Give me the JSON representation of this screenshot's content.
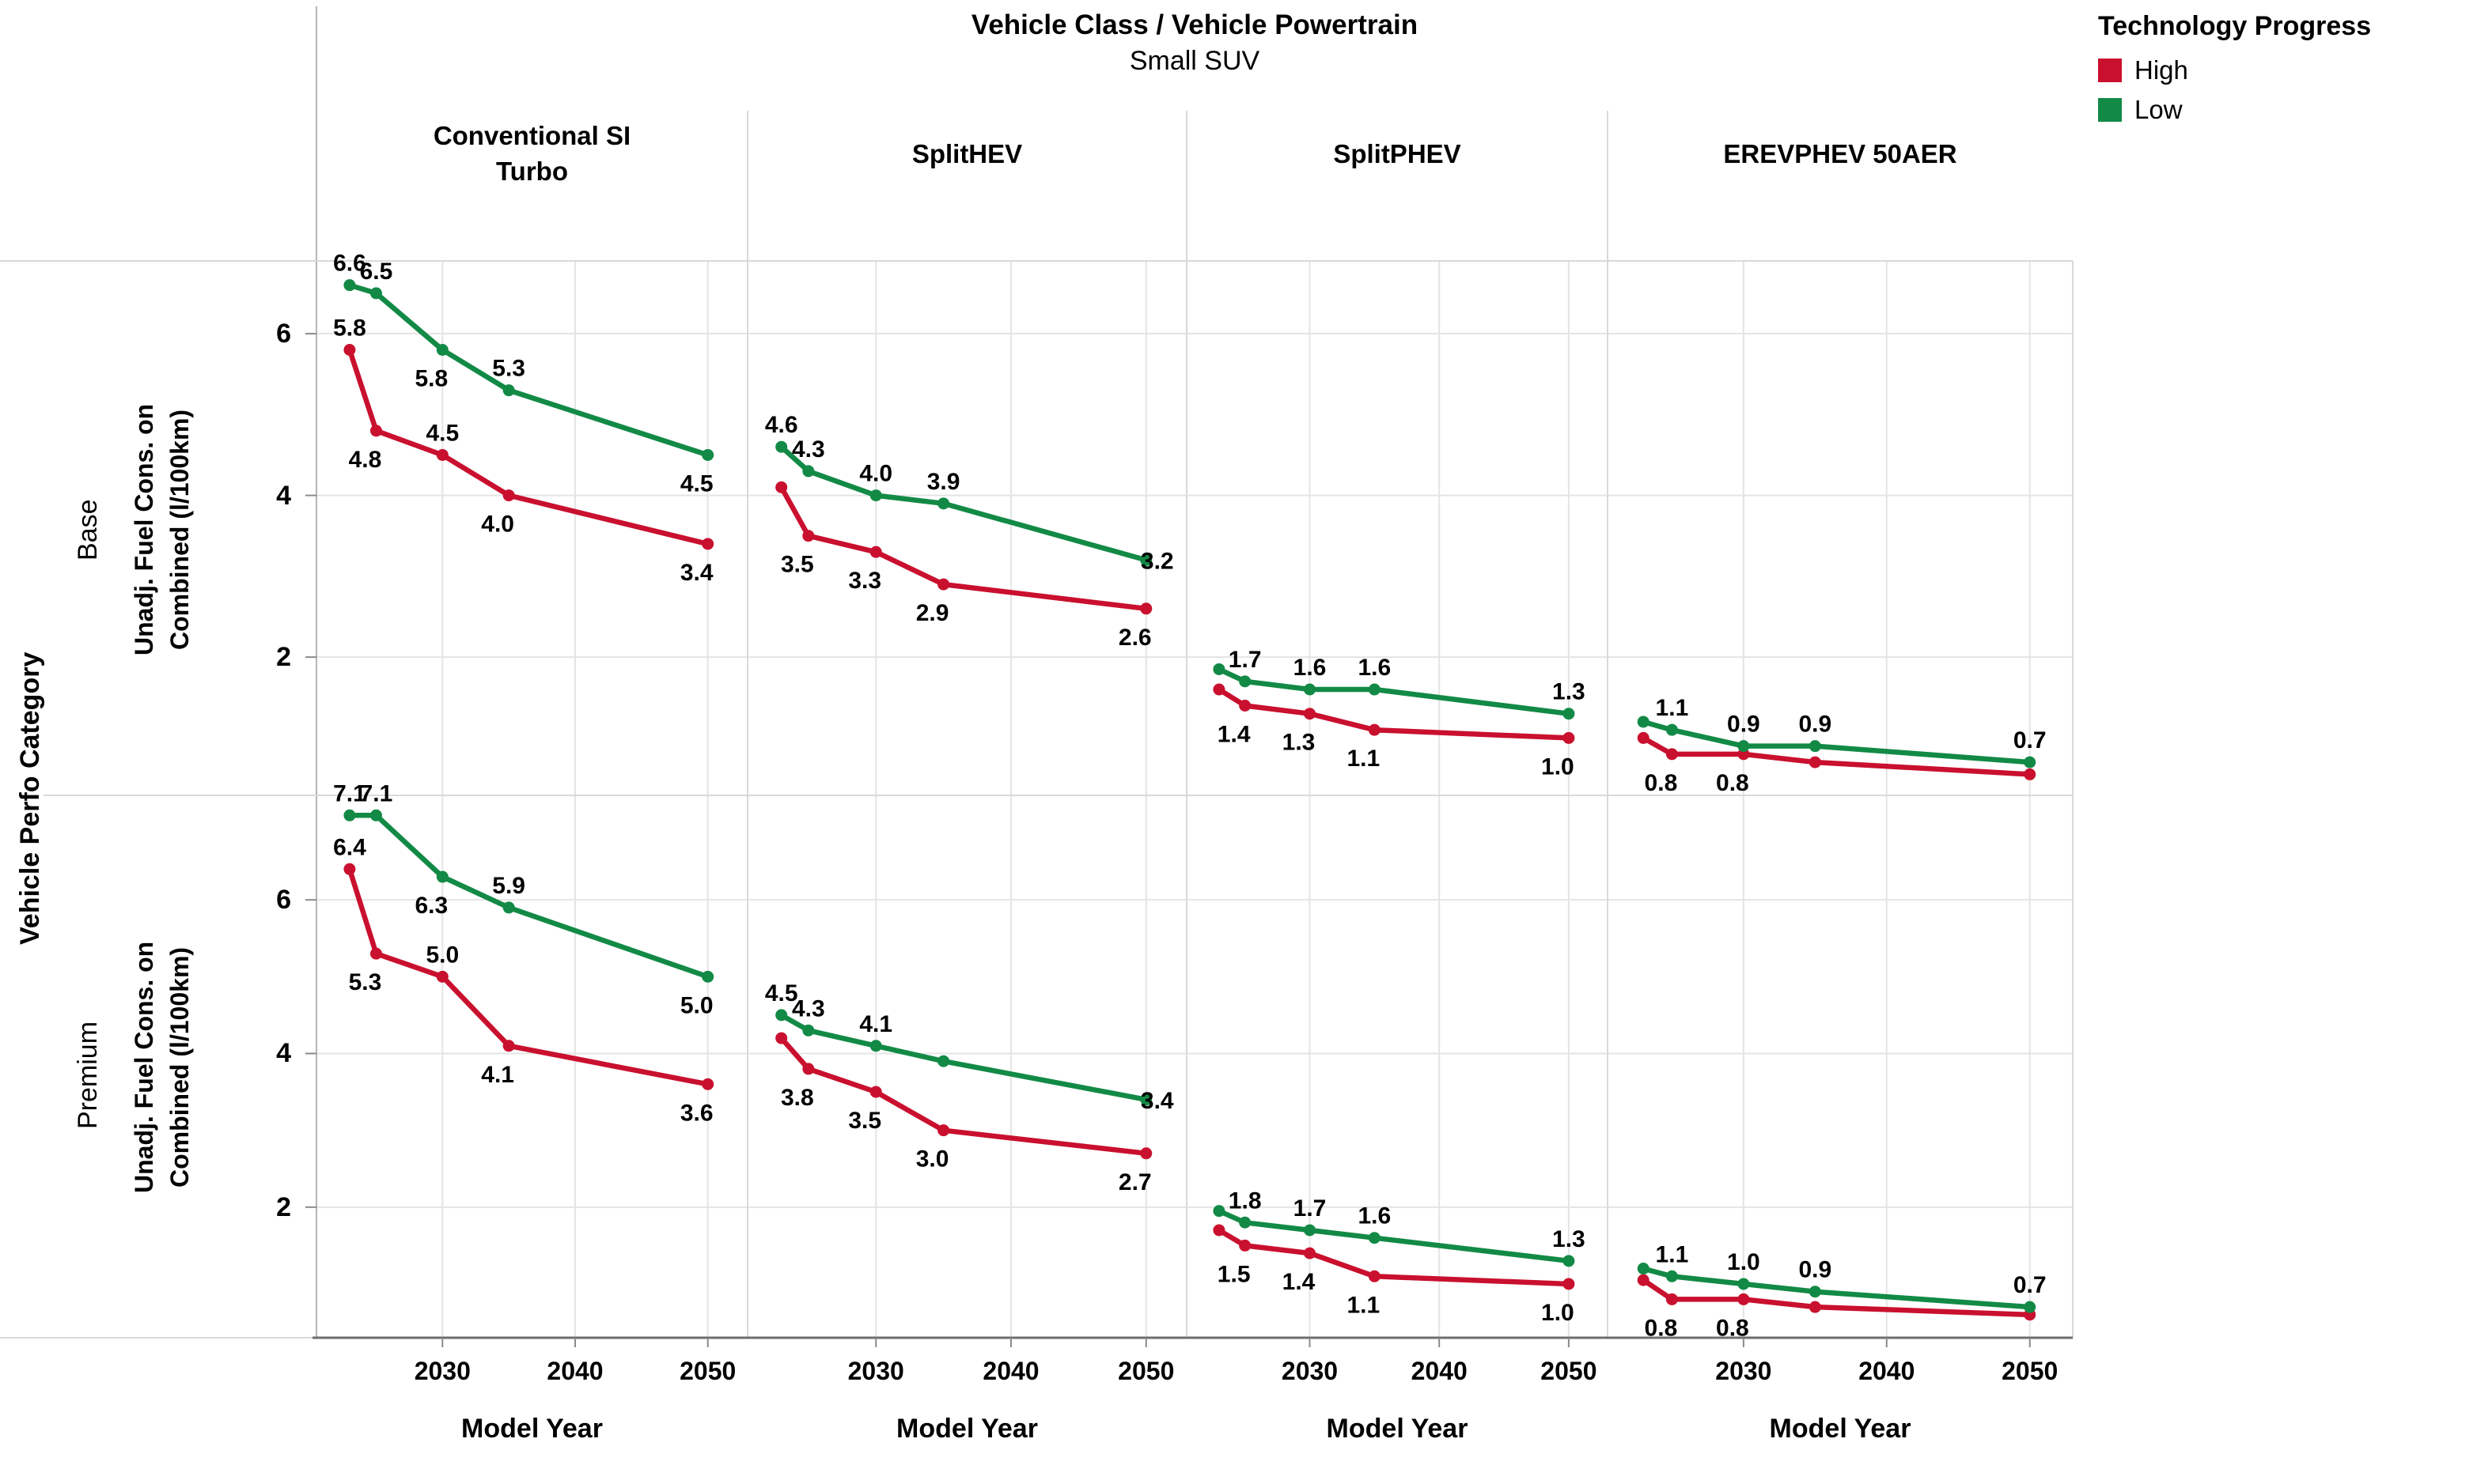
{
  "header": {
    "title": "Vehicle Class / Vehicle Powertrain",
    "subtitle": "Small SUV"
  },
  "legend": {
    "title": "Technology Progress",
    "items": [
      {
        "label": "High",
        "color": "#c9102e"
      },
      {
        "label": "Low",
        "color": "#128a46"
      }
    ]
  },
  "row_category_label": "Vehicle Perfo Category",
  "colors": {
    "high": "#c9102e",
    "low": "#128a46",
    "grid": "#e4e4e4",
    "separator": "#d9d9d9",
    "axis_line": "#b5b5b5",
    "bottom_axis": "#6e6e6e",
    "tick_mark": "#8a8a8a",
    "text": "#000000"
  },
  "chart_data": {
    "type": "line",
    "x": [
      2023,
      2025,
      2030,
      2035,
      2050
    ],
    "x_range": [
      2020.5,
      2053
    ],
    "x_ticks": [
      "2030",
      "2040",
      "2050"
    ],
    "x_label": "Model Year",
    "y_ticks": [
      2,
      4,
      6
    ],
    "y_label": "Unadj. Fuel Cons. on\nCombined (l/100km)",
    "y_range_base": [
      0.3,
      6.9
    ],
    "y_range_premium": [
      0.3,
      7.35
    ],
    "grid": true,
    "legend_position": "top-right",
    "columns": [
      "Conventional SI\nTurbo",
      "SplitHEV",
      "SplitPHEV",
      "EREVPHEV 50AER"
    ],
    "rows": [
      "Base",
      "Premium"
    ],
    "panels": [
      {
        "row": "Base",
        "column": "Conventional SI Turbo",
        "series": [
          {
            "name": "High",
            "color": "#c9102e",
            "values": [
              5.8,
              4.8,
              4.5,
              4.0,
              3.4
            ],
            "labels": [
              "5.8",
              "4.8",
              "4.5",
              "4.0",
              "3.4"
            ],
            "label_pos": [
              "a",
              "b",
              "a",
              "b",
              "b"
            ]
          },
          {
            "name": "Low",
            "color": "#128a46",
            "values": [
              6.6,
              6.5,
              5.8,
              5.3,
              4.5
            ],
            "labels": [
              "6.6",
              "6.5",
              "5.8",
              "5.3",
              "4.5"
            ],
            "label_pos": [
              "a",
              "a",
              "b",
              "a",
              "b"
            ]
          }
        ]
      },
      {
        "row": "Base",
        "column": "SplitHEV",
        "series": [
          {
            "name": "High",
            "color": "#c9102e",
            "values": [
              4.1,
              3.5,
              3.3,
              2.9,
              2.6
            ],
            "labels": [
              null,
              "3.5",
              "3.3",
              "2.9",
              "2.6"
            ],
            "label_pos": [
              null,
              "b",
              "b",
              "b",
              "b"
            ]
          },
          {
            "name": "Low",
            "color": "#128a46",
            "values": [
              4.6,
              4.3,
              4.0,
              3.9,
              3.2
            ],
            "labels": [
              "4.6",
              "4.3",
              "4.0",
              "3.9",
              "3.2"
            ],
            "label_pos": [
              "a",
              "a",
              "a",
              "a",
              "r"
            ]
          }
        ]
      },
      {
        "row": "Base",
        "column": "SplitPHEV",
        "series": [
          {
            "name": "High",
            "color": "#c9102e",
            "values": [
              1.6,
              1.4,
              1.3,
              1.1,
              1.0
            ],
            "labels": [
              null,
              "1.4",
              "1.3",
              "1.1",
              "1.0"
            ],
            "label_pos": [
              null,
              "b",
              "b",
              "b",
              "b"
            ]
          },
          {
            "name": "Low",
            "color": "#128a46",
            "values": [
              1.85,
              1.7,
              1.6,
              1.6,
              1.3
            ],
            "labels": [
              null,
              "1.7",
              "1.6",
              "1.6",
              "1.3"
            ],
            "label_pos": [
              null,
              "a",
              "a",
              "a",
              "a"
            ]
          }
        ]
      },
      {
        "row": "Base",
        "column": "EREVPHEV 50AER",
        "series": [
          {
            "name": "High",
            "color": "#c9102e",
            "values": [
              1.0,
              0.8,
              0.8,
              0.7,
              0.55
            ],
            "labels": [
              null,
              "0.8",
              "0.8",
              null,
              null
            ],
            "label_pos": [
              null,
              "b",
              "b",
              null,
              null
            ]
          },
          {
            "name": "Low",
            "color": "#128a46",
            "values": [
              1.2,
              1.1,
              0.9,
              0.9,
              0.7
            ],
            "labels": [
              null,
              "1.1",
              "0.9",
              "0.9",
              "0.7"
            ],
            "label_pos": [
              null,
              "a",
              "a",
              "a",
              "a"
            ]
          }
        ]
      },
      {
        "row": "Premium",
        "column": "Conventional SI Turbo",
        "series": [
          {
            "name": "High",
            "color": "#c9102e",
            "values": [
              6.4,
              5.3,
              5.0,
              4.1,
              3.6
            ],
            "labels": [
              "6.4",
              "5.3",
              "5.0",
              "4.1",
              "3.6"
            ],
            "label_pos": [
              "a",
              "b",
              "a",
              "b",
              "b"
            ]
          },
          {
            "name": "Low",
            "color": "#128a46",
            "values": [
              7.1,
              7.1,
              6.3,
              5.9,
              5.0
            ],
            "labels": [
              "7.1",
              "7.1",
              "6.3",
              "5.9",
              "5.0"
            ],
            "label_pos": [
              "a",
              "a",
              "b",
              "a",
              "b"
            ]
          }
        ]
      },
      {
        "row": "Premium",
        "column": "SplitHEV",
        "series": [
          {
            "name": "High",
            "color": "#c9102e",
            "values": [
              4.2,
              3.8,
              3.5,
              3.0,
              2.7
            ],
            "labels": [
              null,
              "3.8",
              "3.5",
              "3.0",
              "2.7"
            ],
            "label_pos": [
              null,
              "b",
              "b",
              "b",
              "b"
            ]
          },
          {
            "name": "Low",
            "color": "#128a46",
            "values": [
              4.5,
              4.3,
              4.1,
              3.9,
              3.4
            ],
            "labels": [
              "4.5",
              "4.3",
              "4.1",
              null,
              "3.4"
            ],
            "label_pos": [
              "a",
              "a",
              "a",
              null,
              "r"
            ]
          }
        ]
      },
      {
        "row": "Premium",
        "column": "SplitPHEV",
        "series": [
          {
            "name": "High",
            "color": "#c9102e",
            "values": [
              1.7,
              1.5,
              1.4,
              1.1,
              1.0
            ],
            "labels": [
              null,
              "1.5",
              "1.4",
              "1.1",
              "1.0"
            ],
            "label_pos": [
              null,
              "b",
              "b",
              "b",
              "b"
            ]
          },
          {
            "name": "Low",
            "color": "#128a46",
            "values": [
              1.95,
              1.8,
              1.7,
              1.6,
              1.3
            ],
            "labels": [
              null,
              "1.8",
              "1.7",
              "1.6",
              "1.3"
            ],
            "label_pos": [
              null,
              "a",
              "a",
              "a",
              "a"
            ]
          }
        ]
      },
      {
        "row": "Premium",
        "column": "EREVPHEV 50AER",
        "series": [
          {
            "name": "High",
            "color": "#c9102e",
            "values": [
              1.05,
              0.8,
              0.8,
              0.7,
              0.6
            ],
            "labels": [
              null,
              "0.8",
              "0.8",
              null,
              null
            ],
            "label_pos": [
              null,
              "b",
              "b",
              null,
              null
            ]
          },
          {
            "name": "Low",
            "color": "#128a46",
            "values": [
              1.2,
              1.1,
              1.0,
              0.9,
              0.7
            ],
            "labels": [
              null,
              "1.1",
              "1.0",
              "0.9",
              "0.7"
            ],
            "label_pos": [
              null,
              "a",
              "a",
              "a",
              "a"
            ]
          }
        ]
      }
    ]
  }
}
